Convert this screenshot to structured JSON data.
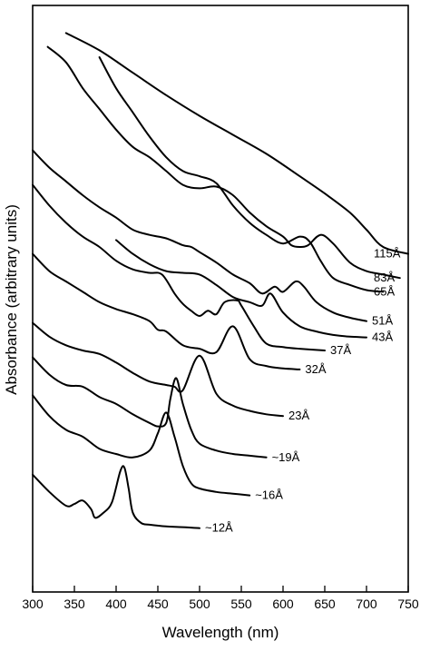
{
  "chart_data": {
    "type": "line",
    "xlabel": "Wavelength (nm)",
    "ylabel": "Absorbance (arbitrary units)",
    "xlim": [
      300,
      750
    ],
    "xticks": [
      "300",
      "350",
      "400",
      "450",
      "500",
      "550",
      "600",
      "650",
      "700",
      "750"
    ],
    "y_scale": "arbitrary (vertically offset curves, no tick labels)",
    "grid": false,
    "legend": "none; each curve labelled at its right end",
    "series": [
      {
        "name": "115Å",
        "x": [
          340,
          380,
          420,
          460,
          500,
          540,
          580,
          620,
          650,
          680,
          700,
          720,
          750
        ],
        "y": [
          10.2,
          9.7,
          9.05,
          8.4,
          7.8,
          7.25,
          6.7,
          6.05,
          5.55,
          5.0,
          4.5,
          4.0,
          3.8
        ]
      },
      {
        "name": "83Å",
        "x": [
          318,
          340,
          360,
          380,
          400,
          420,
          440,
          460,
          480,
          500,
          520,
          540,
          560,
          580,
          600,
          610,
          620,
          630,
          645,
          660,
          680,
          700,
          720,
          740
        ],
        "y": [
          9.8,
          9.35,
          8.6,
          8.0,
          7.4,
          6.9,
          6.6,
          6.2,
          5.8,
          5.7,
          5.75,
          5.5,
          5.0,
          4.6,
          4.3,
          4.05,
          4.0,
          4.05,
          4.35,
          4.1,
          3.55,
          3.3,
          3.2,
          3.1
        ]
      },
      {
        "name": "65Å",
        "x": [
          380,
          400,
          420,
          440,
          460,
          480,
          500,
          520,
          540,
          560,
          580,
          600,
          620,
          632,
          645,
          660,
          680,
          700,
          720
        ],
        "y": [
          9.5,
          8.6,
          7.9,
          7.2,
          6.6,
          6.2,
          6.05,
          5.85,
          5.2,
          4.7,
          4.35,
          4.1,
          4.3,
          4.15,
          3.6,
          3.1,
          2.9,
          2.75,
          2.7
        ]
      },
      {
        "name": "51Å",
        "x": [
          300,
          320,
          340,
          360,
          380,
          400,
          420,
          440,
          460,
          480,
          490,
          500,
          520,
          540,
          560,
          575,
          590,
          600,
          615,
          625,
          640,
          660,
          680,
          700
        ],
        "y": [
          6.8,
          6.3,
          5.9,
          5.5,
          5.15,
          4.85,
          4.5,
          4.35,
          4.25,
          4.05,
          4.0,
          3.85,
          3.55,
          3.2,
          2.95,
          2.65,
          2.85,
          2.7,
          3.0,
          2.85,
          2.4,
          2.1,
          1.95,
          1.85
        ]
      },
      {
        "name": "43Å",
        "x": [
          400,
          420,
          440,
          460,
          480,
          500,
          520,
          540,
          560,
          575,
          585,
          600,
          620,
          640,
          660,
          680,
          700
        ],
        "y": [
          4.2,
          3.8,
          3.5,
          3.3,
          3.25,
          3.2,
          2.9,
          2.55,
          2.4,
          2.3,
          2.65,
          2.1,
          1.7,
          1.55,
          1.45,
          1.4,
          1.38
        ]
      },
      {
        "name": "37Å",
        "x": [
          300,
          320,
          340,
          360,
          380,
          400,
          420,
          440,
          455,
          470,
          480,
          490,
          500,
          510,
          520,
          530,
          545,
          550,
          565,
          580,
          600,
          620,
          650
        ],
        "y": [
          5.8,
          5.2,
          4.7,
          4.3,
          4.0,
          3.6,
          3.35,
          3.25,
          3.2,
          2.65,
          2.35,
          2.15,
          2.0,
          2.15,
          2.05,
          2.4,
          2.45,
          2.3,
          1.7,
          1.2,
          1.1,
          1.05,
          1.0
        ]
      },
      {
        "name": "32Å",
        "x": [
          300,
          320,
          340,
          360,
          380,
          400,
          420,
          440,
          450,
          460,
          480,
          500,
          520,
          540,
          560,
          580,
          600,
          620
        ],
        "y": [
          3.8,
          3.3,
          3.0,
          2.7,
          2.4,
          2.2,
          2.05,
          1.85,
          1.6,
          1.55,
          1.15,
          1.05,
          0.95,
          1.7,
          0.75,
          0.55,
          0.48,
          0.45
        ]
      },
      {
        "name": "23Å",
        "x": [
          300,
          320,
          340,
          360,
          380,
          400,
          420,
          440,
          460,
          470,
          480,
          500,
          520,
          540,
          560,
          580,
          600
        ],
        "y": [
          1.8,
          1.4,
          1.15,
          1.0,
          0.9,
          0.65,
          0.35,
          0.1,
          0.0,
          -0.05,
          -0.15,
          0.85,
          -0.25,
          -0.6,
          -0.75,
          -0.85,
          -0.9
        ]
      },
      {
        "name": "~19Å",
        "x": [
          300,
          320,
          340,
          360,
          380,
          400,
          420,
          440,
          450,
          460,
          465,
          472,
          480,
          490,
          500,
          520,
          540,
          560,
          580
        ],
        "y": [
          0.8,
          0.3,
          0.0,
          -0.05,
          -0.35,
          -0.55,
          -0.85,
          -1.1,
          -1.2,
          -1.1,
          -0.4,
          0.2,
          -0.55,
          -1.3,
          -1.7,
          -1.9,
          -2.0,
          -2.05,
          -2.1
        ]
      },
      {
        "name": "~16Å",
        "x": [
          300,
          320,
          340,
          360,
          380,
          400,
          420,
          440,
          450,
          460,
          470,
          480,
          490,
          500,
          520,
          540,
          560
        ],
        "y": [
          -0.3,
          -0.9,
          -1.3,
          -1.5,
          -1.85,
          -2.0,
          -2.1,
          -1.9,
          -1.4,
          -0.8,
          -1.5,
          -2.35,
          -2.85,
          -3.0,
          -3.1,
          -3.15,
          -3.2
        ]
      },
      {
        "name": "~12Å",
        "x": [
          300,
          320,
          340,
          350,
          360,
          370,
          375,
          385,
          395,
          405,
          410,
          415,
          420,
          430,
          440,
          460,
          480,
          500
        ],
        "y": [
          -2.6,
          -3.1,
          -3.5,
          -3.45,
          -3.35,
          -3.6,
          -3.85,
          -3.7,
          -3.4,
          -2.5,
          -2.4,
          -3.0,
          -3.7,
          -4.0,
          -4.05,
          -4.1,
          -4.12,
          -4.15
        ]
      }
    ]
  }
}
